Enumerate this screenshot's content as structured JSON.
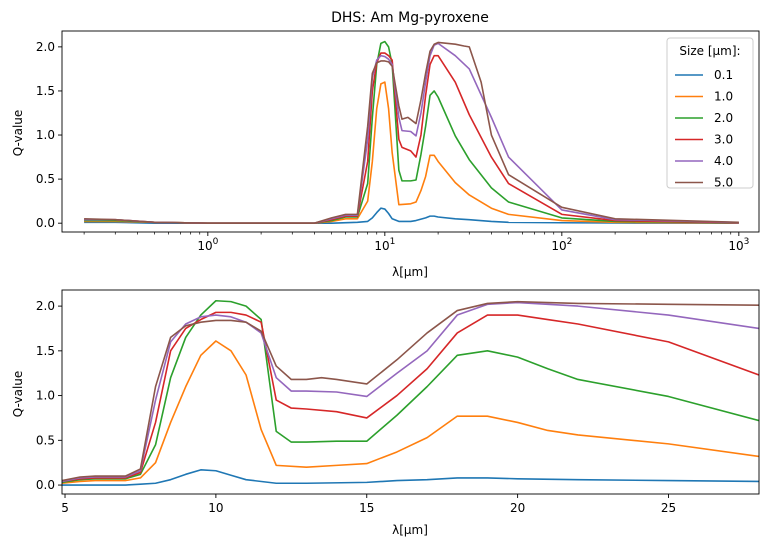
{
  "chart_data": [
    {
      "type": "line",
      "title": "DHS: Am Mg-pyroxene",
      "xlabel": "λ[μm]",
      "ylabel": "Q-value",
      "xscale": "log",
      "xlim": [
        0.15,
        1300
      ],
      "ylim": [
        -0.1,
        2.18
      ],
      "xticks": [
        {
          "value": 1,
          "base": "10",
          "exp": "0"
        },
        {
          "value": 10,
          "base": "10",
          "exp": "1"
        },
        {
          "value": 100,
          "base": "10",
          "exp": "2"
        },
        {
          "value": 1000,
          "base": "10",
          "exp": "3"
        }
      ],
      "yticks": [
        {
          "value": 0,
          "label": "0.0"
        },
        {
          "value": 0.5,
          "label": "0.5"
        },
        {
          "value": 1.0,
          "label": "1.0"
        },
        {
          "value": 1.5,
          "label": "1.5"
        },
        {
          "value": 2.0,
          "label": "2.0"
        }
      ],
      "legend": {
        "title": "Size [μm]:",
        "placement": "top-right"
      },
      "series": [
        {
          "name": "0.1",
          "color": "#1f77b4",
          "x": [
            0.2,
            0.3,
            0.5,
            1,
            2,
            4,
            5,
            7,
            8,
            8.5,
            9,
            9.5,
            10,
            10.5,
            11,
            12,
            14,
            15,
            17,
            18,
            19,
            20,
            25,
            30,
            40,
            50,
            100,
            200,
            1000
          ],
          "y": [
            0.01,
            0.01,
            0.0,
            0.0,
            0.0,
            0.0,
            0.0,
            0.01,
            0.02,
            0.06,
            0.12,
            0.17,
            0.16,
            0.11,
            0.05,
            0.02,
            0.02,
            0.03,
            0.06,
            0.08,
            0.08,
            0.07,
            0.05,
            0.04,
            0.02,
            0.01,
            0.005,
            0.002,
            0.0
          ]
        },
        {
          "name": "1.0",
          "color": "#ff7f0e",
          "x": [
            0.2,
            0.3,
            0.5,
            1,
            2,
            4,
            5,
            6,
            7,
            8,
            8.5,
            9,
            9.5,
            10,
            10.5,
            11,
            12,
            14,
            15,
            16,
            17,
            18,
            19,
            20,
            25,
            30,
            40,
            50,
            100,
            200,
            1000
          ],
          "y": [
            0.02,
            0.02,
            0.01,
            0.0,
            0.0,
            0.0,
            0.02,
            0.05,
            0.05,
            0.25,
            0.7,
            1.3,
            1.58,
            1.6,
            1.3,
            0.8,
            0.21,
            0.22,
            0.24,
            0.37,
            0.53,
            0.77,
            0.77,
            0.7,
            0.46,
            0.32,
            0.17,
            0.1,
            0.03,
            0.01,
            0.002
          ]
        },
        {
          "name": "2.0",
          "color": "#2ca02c",
          "x": [
            0.2,
            0.3,
            0.5,
            1,
            2,
            4,
            5,
            6,
            7,
            8,
            8.5,
            9,
            9.5,
            10,
            10.5,
            11,
            12,
            12.5,
            14,
            15,
            16,
            17,
            18,
            19,
            20,
            25,
            30,
            40,
            50,
            100,
            200,
            1000
          ],
          "y": [
            0.03,
            0.03,
            0.01,
            0.0,
            0.0,
            0.0,
            0.03,
            0.07,
            0.07,
            0.45,
            1.2,
            1.8,
            2.04,
            2.06,
            2.0,
            1.8,
            0.6,
            0.48,
            0.48,
            0.49,
            0.78,
            1.1,
            1.45,
            1.5,
            1.43,
            0.99,
            0.72,
            0.4,
            0.24,
            0.06,
            0.02,
            0.005
          ]
        },
        {
          "name": "3.0",
          "color": "#d62728",
          "x": [
            0.2,
            0.3,
            0.5,
            1,
            2,
            4,
            5,
            6,
            7,
            8,
            8.5,
            9,
            9.5,
            10,
            10.5,
            11,
            12,
            12.5,
            14,
            15,
            16,
            17,
            18,
            19,
            20,
            25,
            30,
            40,
            50,
            100,
            200,
            1000
          ],
          "y": [
            0.04,
            0.04,
            0.01,
            0.0,
            0.0,
            0.0,
            0.04,
            0.08,
            0.08,
            0.7,
            1.5,
            1.82,
            1.93,
            1.93,
            1.9,
            1.85,
            0.95,
            0.86,
            0.82,
            0.75,
            1.0,
            1.45,
            1.8,
            1.9,
            1.9,
            1.6,
            1.23,
            0.75,
            0.45,
            0.1,
            0.03,
            0.005
          ]
        },
        {
          "name": "4.0",
          "color": "#9467bd",
          "x": [
            0.2,
            0.3,
            0.5,
            1,
            2,
            4,
            5,
            6,
            7,
            8,
            8.5,
            9,
            9.5,
            10,
            10.5,
            11,
            12,
            12.5,
            14,
            15,
            16,
            17,
            18,
            19,
            20,
            25,
            30,
            40,
            50,
            100,
            200,
            1000
          ],
          "y": [
            0.04,
            0.04,
            0.01,
            0.0,
            0.0,
            0.0,
            0.05,
            0.09,
            0.09,
            0.95,
            1.65,
            1.85,
            1.9,
            1.89,
            1.86,
            1.8,
            1.2,
            1.05,
            1.04,
            0.99,
            1.25,
            1.6,
            1.9,
            2.02,
            2.04,
            1.9,
            1.75,
            1.2,
            0.75,
            0.15,
            0.04,
            0.008
          ]
        },
        {
          "name": "5.0",
          "color": "#8c564b",
          "x": [
            0.2,
            0.3,
            0.5,
            1,
            2,
            4,
            5,
            6,
            7,
            8,
            8.5,
            9,
            9.5,
            10,
            10.5,
            11,
            12,
            12.5,
            13.5,
            15,
            16,
            17,
            18,
            19,
            20,
            25,
            28,
            30,
            35,
            40,
            50,
            100,
            200,
            1000
          ],
          "y": [
            0.05,
            0.04,
            0.01,
            0.0,
            0.0,
            0.0,
            0.06,
            0.1,
            0.1,
            1.1,
            1.7,
            1.82,
            1.84,
            1.84,
            1.83,
            1.78,
            1.33,
            1.18,
            1.2,
            1.13,
            1.4,
            1.7,
            1.95,
            2.03,
            2.05,
            2.03,
            2.01,
            2.0,
            1.6,
            1.0,
            0.55,
            0.18,
            0.05,
            0.01
          ]
        }
      ]
    },
    {
      "type": "line",
      "title": "",
      "xlabel": "λ[μm]",
      "ylabel": "Q-value",
      "xscale": "linear",
      "xlim": [
        4.9,
        28
      ],
      "ylim": [
        -0.1,
        2.18
      ],
      "xticks": [
        {
          "value": 5,
          "label": "5"
        },
        {
          "value": 10,
          "label": "10"
        },
        {
          "value": 15,
          "label": "15"
        },
        {
          "value": 20,
          "label": "20"
        },
        {
          "value": 25,
          "label": "25"
        }
      ],
      "yticks": [
        {
          "value": 0,
          "label": "0.0"
        },
        {
          "value": 0.5,
          "label": "0.5"
        },
        {
          "value": 1.0,
          "label": "1.0"
        },
        {
          "value": 1.5,
          "label": "1.5"
        },
        {
          "value": 2.0,
          "label": "2.0"
        }
      ],
      "series": [
        {
          "name": "0.1",
          "color": "#1f77b4",
          "x": [
            4.9,
            6,
            7,
            7.5,
            8,
            8.5,
            9,
            9.5,
            10,
            10.5,
            11,
            12,
            13,
            15,
            16,
            17,
            18,
            19,
            20,
            22,
            25,
            28
          ],
          "y": [
            0.0,
            0.0,
            0.0,
            0.01,
            0.02,
            0.06,
            0.12,
            0.17,
            0.16,
            0.11,
            0.06,
            0.02,
            0.02,
            0.03,
            0.05,
            0.06,
            0.08,
            0.08,
            0.07,
            0.06,
            0.05,
            0.04
          ]
        },
        {
          "name": "1.0",
          "color": "#ff7f0e",
          "x": [
            4.9,
            5.5,
            6,
            7,
            7.5,
            8,
            8.5,
            9,
            9.5,
            10,
            10.5,
            11,
            11.5,
            12,
            13,
            14,
            15,
            16,
            17,
            18,
            19,
            20,
            21,
            22,
            25,
            28
          ],
          "y": [
            0.02,
            0.04,
            0.05,
            0.05,
            0.08,
            0.25,
            0.7,
            1.1,
            1.45,
            1.61,
            1.5,
            1.23,
            0.62,
            0.22,
            0.2,
            0.22,
            0.24,
            0.37,
            0.53,
            0.77,
            0.77,
            0.7,
            0.61,
            0.56,
            0.46,
            0.32
          ]
        },
        {
          "name": "2.0",
          "color": "#2ca02c",
          "x": [
            4.9,
            5.5,
            6,
            7,
            7.5,
            8,
            8.5,
            9,
            9.5,
            10,
            10.5,
            11,
            11.5,
            12,
            12.5,
            13,
            14,
            15,
            16,
            17,
            18,
            19,
            20,
            21,
            22,
            25,
            28
          ],
          "y": [
            0.03,
            0.06,
            0.07,
            0.07,
            0.12,
            0.45,
            1.2,
            1.65,
            1.9,
            2.06,
            2.05,
            2.0,
            1.85,
            0.6,
            0.48,
            0.48,
            0.49,
            0.49,
            0.78,
            1.1,
            1.45,
            1.5,
            1.43,
            1.3,
            1.18,
            0.99,
            0.72
          ]
        },
        {
          "name": "3.0",
          "color": "#d62728",
          "x": [
            4.9,
            5.5,
            6,
            7,
            7.5,
            8,
            8.5,
            9,
            9.5,
            10,
            10.5,
            11,
            11.5,
            12,
            12.5,
            13,
            14,
            15,
            16,
            17,
            18,
            19,
            20,
            21,
            22,
            25,
            28
          ],
          "y": [
            0.04,
            0.07,
            0.08,
            0.08,
            0.14,
            0.7,
            1.5,
            1.75,
            1.85,
            1.93,
            1.93,
            1.9,
            1.82,
            0.95,
            0.86,
            0.85,
            0.82,
            0.75,
            1.0,
            1.3,
            1.7,
            1.9,
            1.9,
            1.85,
            1.8,
            1.6,
            1.23
          ]
        },
        {
          "name": "4.0",
          "color": "#9467bd",
          "x": [
            4.9,
            5.5,
            6,
            7,
            7.5,
            8,
            8.5,
            9,
            9.5,
            10,
            10.5,
            11,
            11.5,
            12,
            12.5,
            13,
            14,
            15,
            16,
            17,
            18,
            19,
            20,
            21,
            22,
            25,
            28
          ],
          "y": [
            0.04,
            0.08,
            0.09,
            0.09,
            0.16,
            0.95,
            1.6,
            1.8,
            1.88,
            1.9,
            1.88,
            1.82,
            1.7,
            1.2,
            1.05,
            1.05,
            1.04,
            0.99,
            1.25,
            1.5,
            1.9,
            2.02,
            2.04,
            2.02,
            2.0,
            1.9,
            1.75
          ]
        },
        {
          "name": "5.0",
          "color": "#8c564b",
          "x": [
            4.9,
            5.5,
            6,
            7,
            7.5,
            8,
            8.5,
            9,
            9.5,
            10,
            10.5,
            11,
            11.5,
            12,
            12.5,
            13,
            13.5,
            14,
            15,
            16,
            17,
            18,
            19,
            20,
            21,
            22,
            25,
            28
          ],
          "y": [
            0.05,
            0.09,
            0.1,
            0.1,
            0.18,
            1.1,
            1.65,
            1.78,
            1.82,
            1.84,
            1.84,
            1.82,
            1.72,
            1.33,
            1.18,
            1.18,
            1.2,
            1.18,
            1.13,
            1.4,
            1.7,
            1.95,
            2.03,
            2.05,
            2.04,
            2.03,
            2.02,
            2.01
          ]
        }
      ]
    }
  ]
}
